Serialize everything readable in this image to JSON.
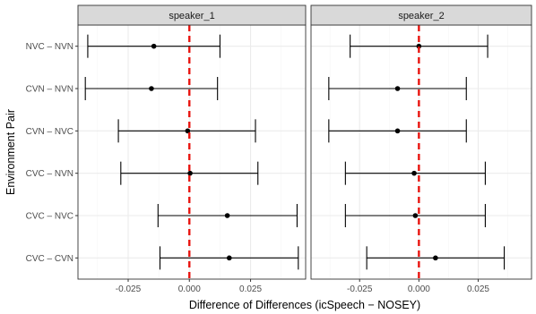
{
  "chart_data": {
    "type": "interval",
    "xlabel": "Difference of Differences (icSpeech − NOSEY)",
    "ylabel": "Environment Pair",
    "categories": [
      "NVC – NVN",
      "CVN – NVN",
      "CVN – NVC",
      "CVC – NVN",
      "CVC – NVC",
      "CVC – CVN"
    ],
    "xlim": [
      -0.0455,
      0.0475
    ],
    "x_ticks": [
      -0.025,
      0,
      0.025
    ],
    "x_tick_labels": [
      "-0.025",
      "0.000",
      "0.025"
    ],
    "reference_line": {
      "x": 0,
      "color": "#e8140f",
      "style": "dashed"
    },
    "grid": true,
    "panels": [
      {
        "name": "speaker_1",
        "estimates": [
          -0.0145,
          -0.0155,
          -0.0007,
          0.0003,
          0.0155,
          0.0163
        ],
        "lower": [
          -0.0415,
          -0.0425,
          -0.029,
          -0.028,
          -0.0128,
          -0.012
        ],
        "upper": [
          0.0125,
          0.0115,
          0.027,
          0.028,
          0.044,
          0.0445
        ]
      },
      {
        "name": "speaker_2",
        "estimates": [
          0.0,
          -0.009,
          -0.009,
          -0.002,
          -0.0015,
          0.007
        ],
        "lower": [
          -0.029,
          -0.038,
          -0.038,
          -0.031,
          -0.031,
          -0.022
        ],
        "upper": [
          0.029,
          0.02,
          0.02,
          0.028,
          0.028,
          0.036
        ]
      }
    ]
  },
  "colors": {
    "strip_fill": "#d9d9d9",
    "panel_border": "#333333",
    "grid_major": "#ebebeb",
    "grid_minor": "#f5f5f5",
    "interval": "#000000",
    "reference": "#e8140f"
  }
}
